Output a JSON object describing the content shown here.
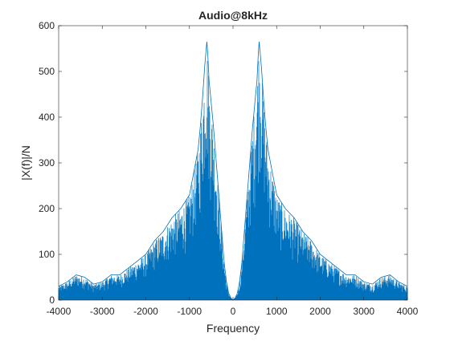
{
  "figure": {
    "background": "#ffffff"
  },
  "chart_data": {
    "type": "line",
    "title": "Audio@8kHz",
    "xlabel": "Frequency",
    "ylabel": "|X(f)|/N",
    "xlim": [
      -4000,
      4000
    ],
    "ylim": [
      0,
      600
    ],
    "x_ticks": [
      -4000,
      -3000,
      -2000,
      -1000,
      0,
      1000,
      2000,
      3000,
      4000
    ],
    "x_tick_labels": [
      "-4000",
      "-3000",
      "-2000",
      "-1000",
      "0",
      "1000",
      "2000",
      "3000",
      "4000"
    ],
    "y_ticks": [
      0,
      100,
      200,
      300,
      400,
      500,
      600
    ],
    "y_tick_labels": [
      "0",
      "100",
      "200",
      "300",
      "400",
      "500",
      "600"
    ],
    "grid": false,
    "box": true,
    "series_color": "#0072BD",
    "axis_color": "#262626",
    "envelope": {
      "x": [
        -4000,
        -3800,
        -3600,
        -3400,
        -3200,
        -3000,
        -2800,
        -2600,
        -2400,
        -2200,
        -2000,
        -1800,
        -1600,
        -1400,
        -1200,
        -1000,
        -900,
        -800,
        -750,
        -700,
        -650,
        -600,
        -580,
        -550,
        -500,
        -450,
        -400,
        -350,
        -300,
        -250,
        -200,
        -150,
        -100,
        -50,
        0,
        50,
        100,
        150,
        200,
        250,
        300,
        350,
        400,
        450,
        500,
        550,
        580,
        600,
        650,
        700,
        750,
        800,
        900,
        1000,
        1200,
        1400,
        1600,
        1800,
        2000,
        2200,
        2400,
        2600,
        2800,
        3000,
        3200,
        3400,
        3600,
        3800,
        4000
      ],
      "y": [
        30,
        40,
        55,
        50,
        35,
        40,
        55,
        55,
        70,
        85,
        100,
        130,
        150,
        180,
        200,
        230,
        280,
        330,
        380,
        440,
        510,
        565,
        540,
        480,
        430,
        380,
        320,
        260,
        200,
        140,
        80,
        40,
        15,
        5,
        0,
        5,
        15,
        40,
        80,
        140,
        200,
        260,
        320,
        380,
        430,
        480,
        540,
        565,
        510,
        440,
        380,
        330,
        280,
        230,
        200,
        180,
        150,
        130,
        100,
        85,
        70,
        55,
        55,
        40,
        35,
        50,
        55,
        40,
        30
      ]
    }
  }
}
